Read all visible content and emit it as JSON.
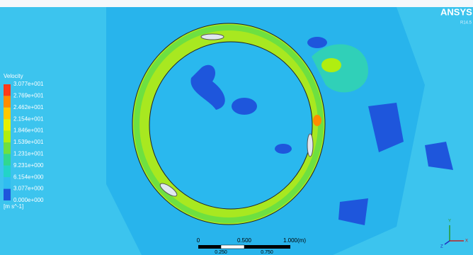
{
  "logo": {
    "name": "ANSYS",
    "version": "R14.5"
  },
  "legend": {
    "title": "Velocity",
    "labels": [
      "3.077e+001",
      "2.769e+001",
      "2.462e+001",
      "2.154e+001",
      "1.846e+001",
      "1.539e+001",
      "1.231e+001",
      "9.231e+000",
      "6.154e+000",
      "3.077e+000",
      "0.000e+000"
    ],
    "colors": [
      "#ff3a1a",
      "#ff8c00",
      "#ffc800",
      "#e8f000",
      "#b0ee10",
      "#6ee040",
      "#30d890",
      "#22d4c8",
      "#30bdf0",
      "#1e56dc"
    ],
    "unit": "[m s^-1]"
  },
  "scale_bar": {
    "top_labels": [
      "0",
      "0.500",
      "1.000"
    ],
    "unit": "(m)",
    "bottom_labels": [
      "0.250",
      "0.750"
    ]
  },
  "axes": {
    "x": "X",
    "y": "Y",
    "z": "Z"
  }
}
